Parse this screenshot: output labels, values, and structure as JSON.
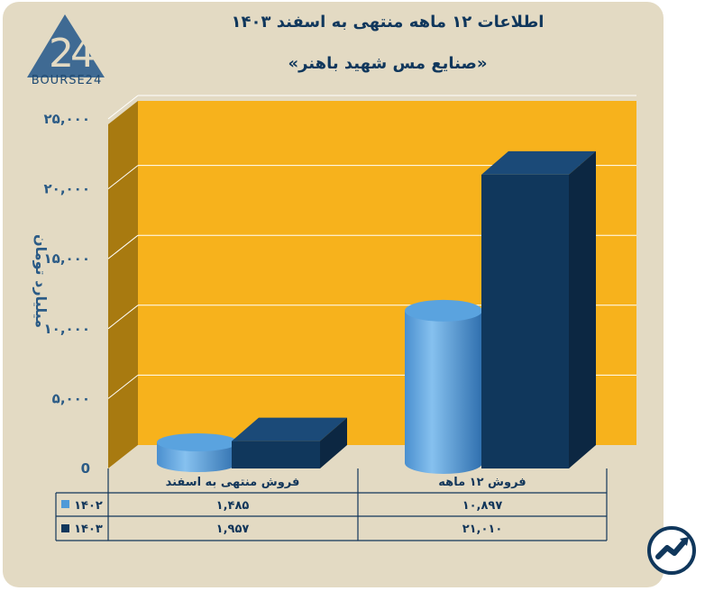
{
  "header": {
    "title": "اطلاعات ۱۲ ماهه منتهی به اسفند ۱۴۰۳",
    "subtitle": "«صنایع مس شهید باهنر»",
    "logo_text": "BOURSE24"
  },
  "colors": {
    "background": "#e3dac3",
    "plot_back": "#f7b21c",
    "plot_side": "#a87a10",
    "series_1402": "#4f9ad8",
    "series_1403": "#10375c",
    "text": "#10375c"
  },
  "chart_data": {
    "type": "bar",
    "ylabel": "میلیارد تومان",
    "ylim": [
      0,
      25000
    ],
    "yticks": [
      0,
      5000,
      10000,
      15000,
      20000,
      25000
    ],
    "ytick_labels": [
      "0",
      "۵,۰۰۰",
      "۱۰,۰۰۰",
      "۱۵,۰۰۰",
      "۲۰,۰۰۰",
      "۲۵,۰۰۰"
    ],
    "categories": [
      "فروش منتهی به  اسفند",
      "فروش ۱۲ ماهه"
    ],
    "series": [
      {
        "name": "۱۴۰۲",
        "values": [
          1485,
          10897
        ],
        "labels": [
          "۱,۴۸۵",
          "۱۰,۸۹۷"
        ],
        "shape": "cylinder"
      },
      {
        "name": "۱۴۰۳",
        "values": [
          1957,
          21010
        ],
        "labels": [
          "۱,۹۵۷",
          "۲۱,۰۱۰"
        ],
        "shape": "box"
      }
    ],
    "grid": true,
    "legend": "data-table"
  }
}
